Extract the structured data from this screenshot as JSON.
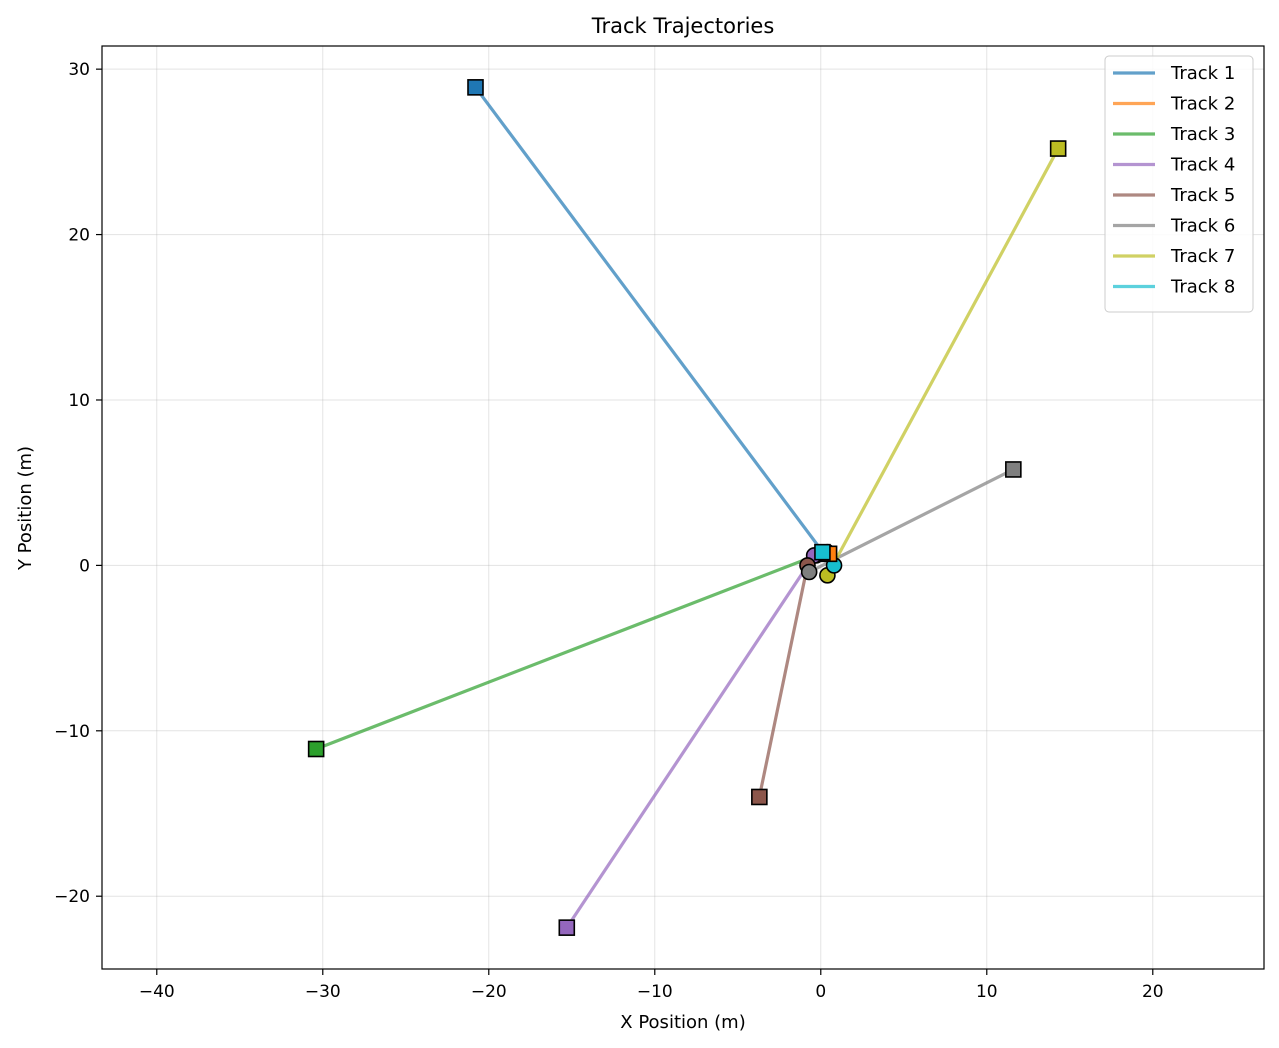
{
  "chart_data": {
    "type": "line",
    "title": "Track Trajectories",
    "xlabel": "X Position (m)",
    "ylabel": "Y Position (m)",
    "xlim": [
      -43.3,
      26.7
    ],
    "ylim": [
      -24.4,
      31.4
    ],
    "xticks": [
      -40,
      -30,
      -20,
      -10,
      0,
      10,
      20
    ],
    "yticks": [
      -20,
      -10,
      0,
      10,
      20,
      30
    ],
    "grid": true,
    "legend_position": "top-right",
    "start_marker": "circle",
    "end_marker": "square",
    "series": [
      {
        "name": "Track 1",
        "color": "#1f77b4",
        "start": [
          0.2,
          0.7
        ],
        "end": [
          -20.8,
          28.9
        ]
      },
      {
        "name": "Track 2",
        "color": "#ff7f0e",
        "start": [
          0.4,
          0.8
        ],
        "end": [
          0.5,
          0.7
        ]
      },
      {
        "name": "Track 3",
        "color": "#2ca02c",
        "start": [
          -0.3,
          0.6
        ],
        "end": [
          -30.4,
          -11.1
        ]
      },
      {
        "name": "Track 4",
        "color": "#9467bd",
        "start": [
          -0.4,
          0.6
        ],
        "end": [
          -15.3,
          -21.9
        ]
      },
      {
        "name": "Track 5",
        "color": "#8c564b",
        "start": [
          -0.8,
          0.0
        ],
        "end": [
          -3.7,
          -14.0
        ]
      },
      {
        "name": "Track 6",
        "color": "#7f7f7f",
        "start": [
          -0.7,
          -0.4
        ],
        "end": [
          11.6,
          5.8
        ]
      },
      {
        "name": "Track 7",
        "color": "#bcbd22",
        "start": [
          0.4,
          -0.6
        ],
        "end": [
          14.3,
          25.2
        ]
      },
      {
        "name": "Track 8",
        "color": "#17becf",
        "start": [
          0.8,
          0.0
        ],
        "end": [
          0.1,
          0.8
        ]
      }
    ]
  }
}
